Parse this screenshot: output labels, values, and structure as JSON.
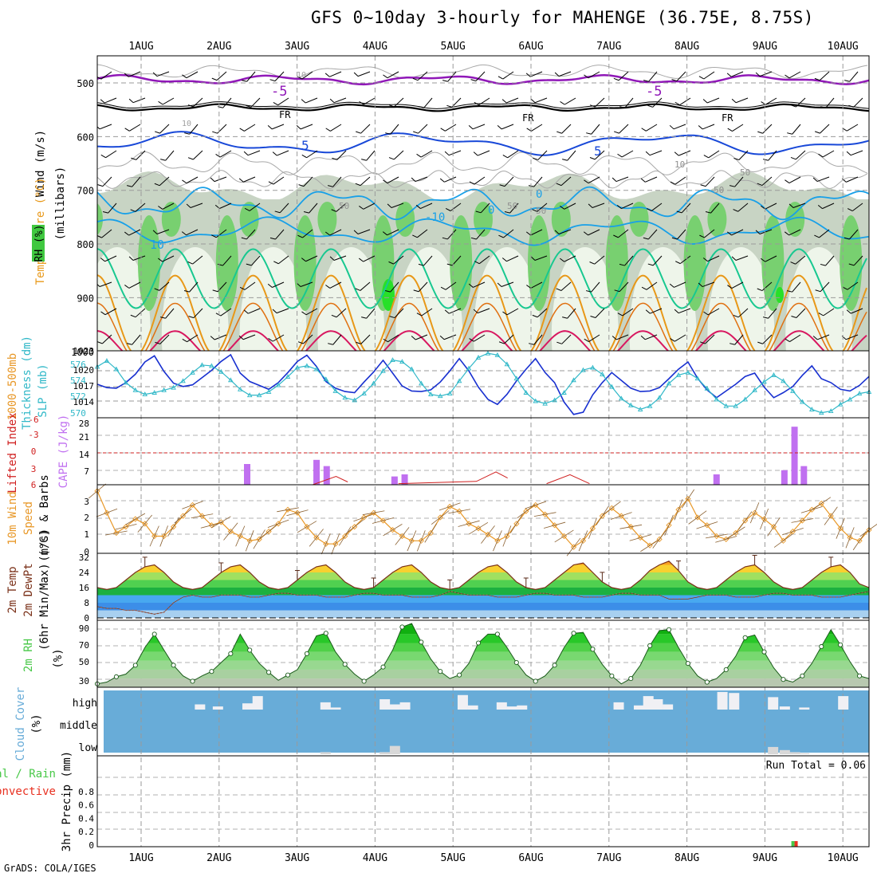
{
  "title": "GFS 0~10day 3-hourly for MAHENGE (36.75E, 8.75S)",
  "credit": "GrADS: COLA/IGES",
  "date_ticks": [
    "1AUG",
    "2AUG",
    "3AUG",
    "4AUG",
    "5AUG",
    "6AUG",
    "7AUG",
    "8AUG",
    "9AUG",
    "10AUG"
  ],
  "colors": {
    "wind_black": "#000000",
    "temp_purple": "#9018b8",
    "temp_blue": "#1848d8",
    "temp_lightblue": "#18a0e8",
    "temp_teal": "#18c890",
    "temp_orange": "#e89818",
    "temp_red": "#d81860",
    "rh_green": "#48c848",
    "slp_blue": "#1830d0",
    "thick_cyan": "#30b8c8",
    "cape_purple": "#c070f0",
    "li_red": "#d02020",
    "wind_orange": "#e89828",
    "cloud_blue": "#68acd8"
  },
  "panels": {
    "upper": {
      "ylabel_wind": "Wind (m/s)",
      "ylabel_temp": "Temperature (°C)",
      "ylabel_rh": "RH (%)",
      "ylabel_mb": "(millibars)",
      "yticks": [
        "500",
        "600",
        "700",
        "800",
        "900",
        "1000"
      ],
      "contour_labels": [
        "-5",
        "-5",
        "FR",
        "FR",
        "FR",
        "5",
        "5",
        "-10",
        "10",
        "10",
        "10",
        "10",
        "0",
        "0",
        "50",
        "50",
        "50",
        "50",
        "50"
      ]
    },
    "slp": {
      "ylabel_left": "1000-500mb",
      "ylabel_left2": "Thickness (dm)",
      "ylabel_right": "SLP (mb)",
      "left_ticks": [
        "576",
        "574",
        "572",
        "570"
      ],
      "right_ticks": [
        "1023",
        "1020",
        "1017",
        "1014"
      ]
    },
    "cape": {
      "ylabel_li": "Lifted Index",
      "ylabel_cape": "CAPE (J/kg)",
      "li_ticks": [
        "-6",
        "-3",
        "0",
        "3",
        "6"
      ],
      "cape_ticks": [
        "28",
        "21",
        "14",
        "7"
      ]
    },
    "wind10": {
      "ylabel1": "10m Wind",
      "ylabel2": "Speed",
      "ylabel3": "(m/s) & Barbs",
      "yticks": [
        "3",
        "2",
        "1",
        "0"
      ]
    },
    "temp2m": {
      "ylabel1": "2m Temp",
      "ylabel2": "2m DewPt",
      "ylabel3": "(6hr Min/Max) (°C)",
      "yticks": [
        "32",
        "24",
        "16",
        "8",
        "0"
      ]
    },
    "rh2m": {
      "ylabel1": "2m RH",
      "ylabel2": "(%)",
      "yticks": [
        "90",
        "70",
        "50",
        "30"
      ]
    },
    "cloud": {
      "ylabel1": "Cloud Cover",
      "ylabel2": "(%)",
      "levels": [
        "high",
        "middle",
        "low"
      ]
    },
    "precip": {
      "ylabel1": "Total / Rain",
      "ylabel2": "Convective",
      "ylabel3": "3hr Precip (mm)",
      "yticks": [
        "0.8",
        "0.6",
        "0.4",
        "0.2",
        "0"
      ],
      "run_total": "Run Total = 0.06"
    }
  },
  "chart_data": [
    {
      "type": "line",
      "title": "1000-500mb Thickness (dm) & SLP (mb)",
      "x_step_hours": 3,
      "series": [
        {
          "name": "SLP (mb)",
          "ylim": [
            1011,
            1023
          ],
          "values": [
            1017.0,
            1016.4,
            1016.3,
            1017.3,
            1018.8,
            1021.0,
            1022.1,
            1019.3,
            1017.2,
            1016.6,
            1016.9,
            1018.2,
            1019.5,
            1021.1,
            1022.3,
            1019.0,
            1017.5,
            1016.8,
            1016.1,
            1017.3,
            1019.1,
            1021.1,
            1022.2,
            1020.2,
            1017.5,
            1016.3,
            1015.7,
            1015.5,
            1017.4,
            1019.2,
            1021.3,
            1019.0,
            1016.7,
            1015.8,
            1015.7,
            1016.0,
            1017.4,
            1019.4,
            1021.6,
            1019.4,
            1016.5,
            1014.3,
            1013.4,
            1015.2,
            1017.6,
            1019.7,
            1021.6,
            1019.1,
            1017.3,
            1013.8,
            1011.6,
            1012.0,
            1015.1,
            1017.3,
            1019.1,
            1017.7,
            1016.3,
            1015.7,
            1015.8,
            1016.4,
            1018.0,
            1019.7,
            1021.0,
            1018.1,
            1016.0,
            1014.6,
            1015.8,
            1017.0,
            1018.4,
            1019.0,
            1016.5,
            1014.6,
            1015.5,
            1016.6,
            1018.6,
            1020.3,
            1018.0,
            1017.3,
            1016.1,
            1015.8,
            1016.8,
            1018.4
          ]
        },
        {
          "name": "1000-500mb Thickness (dm)",
          "ylim": [
            569.5,
            577.5
          ],
          "values": [
            575.6,
            576.3,
            575.3,
            573.7,
            572.8,
            572.3,
            572.5,
            572.8,
            573.1,
            573.9,
            574.9,
            575.8,
            575.7,
            575.0,
            574.0,
            572.9,
            572.2,
            572.2,
            572.6,
            573.4,
            574.4,
            575.5,
            575.7,
            575.3,
            574.1,
            572.7,
            571.9,
            571.6,
            572.4,
            573.6,
            575.1,
            576.4,
            576.2,
            575.3,
            573.6,
            572.3,
            572.1,
            572.4,
            573.9,
            575.4,
            576.7,
            577.2,
            577.0,
            575.9,
            574.2,
            572.5,
            571.5,
            571.2,
            571.6,
            572.5,
            574.0,
            575.2,
            575.5,
            574.7,
            573.2,
            571.8,
            571.0,
            570.5,
            570.9,
            571.9,
            573.6,
            574.6,
            574.9,
            574.2,
            573.0,
            571.7,
            570.9,
            570.9,
            571.7,
            572.8,
            573.8,
            574.6,
            573.9,
            572.7,
            571.4,
            570.5,
            570.1,
            570.3,
            571.1,
            571.7,
            572.4,
            572.6
          ]
        }
      ]
    },
    {
      "type": "bar",
      "title": "CAPE (J/kg) & Lifted Index",
      "cape_ylim": [
        0,
        30
      ],
      "li_ylim": [
        -6,
        6
      ],
      "cape_bars": [
        {
          "day": 2.36,
          "value": 10
        },
        {
          "day": 3.25,
          "value": 12
        },
        {
          "day": 3.38,
          "value": 9
        },
        {
          "day": 4.25,
          "value": 4
        },
        {
          "day": 4.38,
          "value": 5
        },
        {
          "day": 8.38,
          "value": 5
        },
        {
          "day": 9.25,
          "value": 7
        },
        {
          "day": 9.38,
          "value": 28
        },
        {
          "day": 9.5,
          "value": 9
        }
      ],
      "lifted_index_line": [
        {
          "day": 3.2,
          "value": 6
        },
        {
          "day": 3.5,
          "value": 4.5
        },
        {
          "day": 3.65,
          "value": 5.5
        },
        {
          "day": 4.3,
          "value": 5.8
        },
        {
          "day": 5.3,
          "value": 5.4
        },
        {
          "day": 5.55,
          "value": 3.7
        },
        {
          "day": 5.7,
          "value": 4.8
        },
        {
          "day": 6.2,
          "value": 5.8
        },
        {
          "day": 6.5,
          "value": 4.2
        },
        {
          "day": 6.75,
          "value": 5.8
        }
      ]
    },
    {
      "type": "line",
      "title": "10m Wind Speed (m/s)",
      "ylim": [
        0,
        4
      ],
      "values": [
        3.8,
        2.4,
        1.1,
        1.5,
        2.0,
        1.7,
        0.9,
        0.9,
        1.5,
        2.2,
        2.9,
        2.2,
        1.6,
        1.8,
        1.2,
        0.9,
        0.6,
        0.7,
        1.2,
        1.7,
        2.6,
        2.4,
        1.5,
        0.8,
        0.4,
        0.4,
        0.9,
        1.5,
        2.1,
        2.4,
        1.9,
        1.3,
        0.9,
        0.6,
        0.6,
        1.1,
        2.1,
        2.8,
        2.5,
        1.7,
        1.4,
        1.0,
        0.6,
        0.9,
        1.7,
        2.5,
        2.9,
        2.3,
        1.6,
        0.9,
        0.2,
        0.6,
        1.4,
        2.2,
        2.7,
        2.2,
        1.5,
        0.8,
        0.3,
        0.7,
        1.6,
        2.6,
        3.3,
        2.1,
        1.6,
        0.9,
        0.7,
        1.1,
        1.9,
        2.4,
        2.0,
        1.5,
        0.6,
        1.2,
        1.9,
        2.6,
        3.0,
        2.2,
        1.4,
        0.8,
        0.6,
        1.3
      ]
    },
    {
      "type": "area",
      "title": "2m Temp & DewPt (°C)",
      "ylim": [
        0,
        32
      ],
      "series": [
        {
          "name": "2m Temp",
          "values": [
            16,
            15,
            16,
            20,
            24,
            27,
            28,
            24,
            19,
            16,
            15,
            16,
            20,
            24,
            27,
            28,
            24,
            19,
            16,
            15,
            16,
            20,
            24,
            27,
            28,
            24,
            19,
            16,
            15,
            16,
            20,
            24,
            27,
            28,
            24,
            19,
            16,
            15,
            16,
            20,
            24,
            27,
            28,
            24,
            19,
            16,
            15,
            16,
            20,
            24,
            28,
            29,
            24,
            19,
            16,
            15,
            16,
            20,
            25,
            28,
            30,
            25,
            19,
            16,
            15,
            16,
            20,
            24,
            27,
            28,
            24,
            19,
            16,
            15,
            16,
            20,
            24,
            27,
            28,
            24,
            18,
            16
          ]
        },
        {
          "name": "2m DewPt",
          "values": [
            6,
            5,
            5,
            4,
            4,
            3,
            2,
            3,
            8,
            11,
            12,
            11,
            11,
            12,
            12,
            12,
            11,
            11,
            12,
            13,
            13,
            12,
            12,
            12,
            11,
            11,
            11,
            12,
            13,
            13,
            12,
            12,
            12,
            11,
            11,
            11,
            12,
            14,
            13,
            12,
            12,
            12,
            11,
            11,
            11,
            12,
            13,
            13,
            12,
            12,
            12,
            11,
            11,
            11,
            12,
            13,
            13,
            12,
            12,
            12,
            10,
            10,
            10,
            11,
            12,
            12,
            12,
            11,
            11,
            11,
            12,
            13,
            13,
            12,
            12,
            12,
            11,
            11,
            11,
            12,
            13,
            14
          ]
        }
      ]
    },
    {
      "type": "area",
      "title": "2m RH (%)",
      "ylim": [
        22,
        92
      ],
      "values": [
        24,
        26,
        32,
        35,
        45,
        65,
        80,
        62,
        45,
        33,
        27,
        33,
        38,
        48,
        58,
        80,
        62,
        47,
        37,
        28,
        34,
        40,
        58,
        78,
        81,
        60,
        46,
        35,
        27,
        34,
        43,
        62,
        88,
        92,
        71,
        52,
        38,
        30,
        34,
        47,
        70,
        80,
        80,
        65,
        48,
        34,
        27,
        33,
        45,
        65,
        81,
        82,
        63,
        46,
        33,
        24,
        30,
        45,
        67,
        84,
        85,
        65,
        47,
        33,
        26,
        30,
        40,
        55,
        76,
        79,
        60,
        42,
        29,
        26,
        33,
        47,
        66,
        85,
        68,
        49,
        33,
        30
      ]
    },
    {
      "type": "bar",
      "title": "Cloud Cover (%)",
      "high": [
        {
          "day": 1.75,
          "value": 25
        },
        {
          "day": 1.98,
          "value": 15
        },
        {
          "day": 2.36,
          "value": 30
        },
        {
          "day": 2.49,
          "value": 65
        },
        {
          "day": 3.36,
          "value": 35
        },
        {
          "day": 3.49,
          "value": 10
        },
        {
          "day": 4.12,
          "value": 50
        },
        {
          "day": 4.25,
          "value": 25
        },
        {
          "day": 4.38,
          "value": 35
        },
        {
          "day": 5.12,
          "value": 70
        },
        {
          "day": 5.25,
          "value": 20
        },
        {
          "day": 5.62,
          "value": 35
        },
        {
          "day": 5.75,
          "value": 15
        },
        {
          "day": 5.88,
          "value": 20
        },
        {
          "day": 7.12,
          "value": 35
        },
        {
          "day": 7.38,
          "value": 20
        },
        {
          "day": 7.5,
          "value": 65
        },
        {
          "day": 7.62,
          "value": 50
        },
        {
          "day": 7.75,
          "value": 25
        },
        {
          "day": 8.45,
          "value": 85
        },
        {
          "day": 8.6,
          "value": 80
        },
        {
          "day": 9.1,
          "value": 60
        },
        {
          "day": 9.25,
          "value": 15
        },
        {
          "day": 9.5,
          "value": 10
        },
        {
          "day": 10.0,
          "value": 65
        }
      ],
      "low": [
        {
          "day": 3.36,
          "value": 10
        },
        {
          "day": 4.12,
          "value": 10
        },
        {
          "day": 4.25,
          "value": 40
        },
        {
          "day": 9.1,
          "value": 35
        },
        {
          "day": 9.25,
          "value": 20
        },
        {
          "day": 9.38,
          "value": 10
        },
        {
          "day": 9.5,
          "value": 5
        }
      ]
    },
    {
      "type": "bar",
      "title": "3hr Precip (mm)",
      "ylim": [
        0,
        1
      ],
      "total": [
        {
          "day": 9.38,
          "value": 0.06
        }
      ],
      "convective": [
        {
          "day": 9.38,
          "value": 0.06
        }
      ]
    }
  ]
}
